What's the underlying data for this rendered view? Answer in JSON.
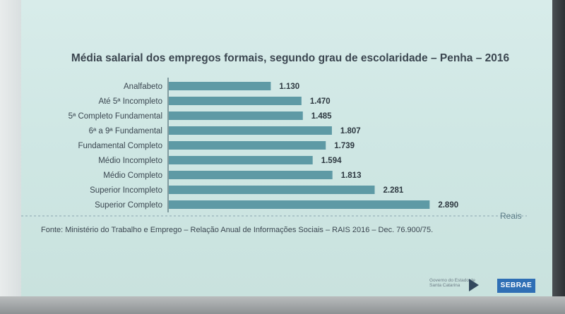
{
  "chart_data": {
    "type": "bar",
    "orientation": "horizontal",
    "title": "Média salarial dos empregos formais, segundo grau de escolaridade – Penha – 2016",
    "categories": [
      "Analfabeto",
      "Até 5ª Incompleto",
      "5ª Completo Fundamental",
      "6ª a 9ª Fundamental",
      "Fundamental Completo",
      "Médio Incompleto",
      "Médio Completo",
      "Superior Incompleto",
      "Superior Completo"
    ],
    "values": [
      1130,
      1470,
      1485,
      1807,
      1739,
      1594,
      1813,
      2281,
      2890
    ],
    "value_labels": [
      "1.130",
      "1.470",
      "1.485",
      "1.807",
      "1.739",
      "1.594",
      "1.813",
      "2.281",
      "2.890"
    ],
    "unit_label": "Reais",
    "xlim": [
      0,
      3500
    ],
    "grid": false,
    "bar_color": "#5e9aa5"
  },
  "source_text": "Fonte: Ministério do Trabalho e Emprego – Relação Anual de Informações Sociais – RAIS 2016 – Dec. 76.900/75.",
  "logos": {
    "left_text": "Governo do Estado de Santa Catarina",
    "right_text": "SEBRAE"
  },
  "colors": {
    "screen": "#d3eae7",
    "bar": "#5e9aa5",
    "title": "#3b4650"
  }
}
